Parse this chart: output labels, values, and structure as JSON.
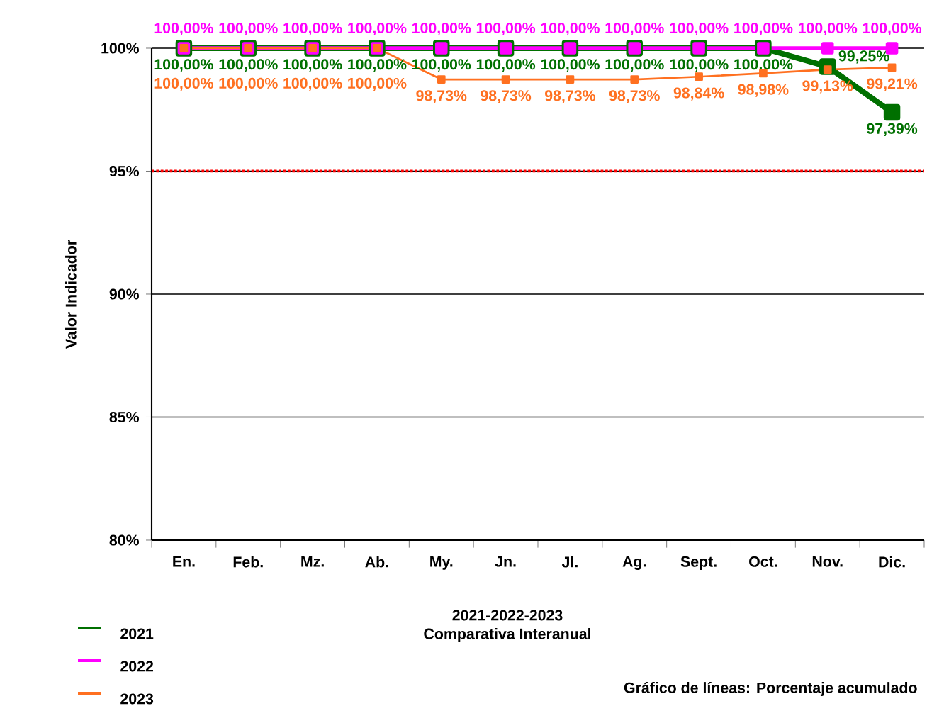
{
  "chart_data": {
    "type": "line",
    "title": "2021-2022-2023",
    "subtitle": "Comparativa Interanual",
    "ylabel": "Valor Indicador",
    "categories": [
      "En.",
      "Feb.",
      "Mz.",
      "Ab.",
      "My.",
      "Jn.",
      "Jl.",
      "Ag.",
      "Sept.",
      "Oct.",
      "Nov.",
      "Dic."
    ],
    "series": [
      {
        "name": "2021",
        "color": "#007000",
        "values": [
          100,
          100,
          100,
          100,
          100,
          100,
          100,
          100,
          100,
          100,
          99.25,
          97.39
        ],
        "value_labels": [
          "100,00%",
          "100,00%",
          "100,00%",
          "100,00%",
          "100,00%",
          "100,00%",
          "100,00%",
          "100,00%",
          "100,00%",
          "100,00%",
          "99,25%",
          "97,39%"
        ]
      },
      {
        "name": "2022",
        "color": "#ff00ff",
        "values": [
          100,
          100,
          100,
          100,
          100,
          100,
          100,
          100,
          100,
          100,
          100,
          100
        ],
        "value_labels": [
          "100,00%",
          "100,00%",
          "100,00%",
          "100,00%",
          "100,00%",
          "100,00%",
          "100,00%",
          "100,00%",
          "100,00%",
          "100,00%",
          "100,00%",
          "100,00%"
        ]
      },
      {
        "name": "2023",
        "color": "#ff7020",
        "values": [
          100,
          100,
          100,
          100,
          98.73,
          98.73,
          98.73,
          98.73,
          98.84,
          98.98,
          99.13,
          99.21
        ],
        "value_labels": [
          "100,00%",
          "100,00%",
          "100,00%",
          "100,00%",
          "98,73%",
          "98,73%",
          "98,73%",
          "98,73%",
          "98,84%",
          "98,98%",
          "99,13%",
          "99,21%"
        ]
      }
    ],
    "ylim": [
      80,
      100
    ],
    "yticks": [
      {
        "value": 80,
        "label": "80%"
      },
      {
        "value": 85,
        "label": "85%"
      },
      {
        "value": 90,
        "label": "90%"
      },
      {
        "value": 95,
        "label": "95%"
      },
      {
        "value": 100,
        "label": "100%"
      }
    ],
    "ref_lines": [
      {
        "axis": "y",
        "value": 95,
        "color": "#ff0000",
        "line_style": "dotted"
      }
    ],
    "annotations": [
      "Gráfico de líneas:  Porcentaje acumulado"
    ],
    "grid": "y",
    "legend": "bottom left",
    "marker": "square",
    "line_style": "solid"
  }
}
